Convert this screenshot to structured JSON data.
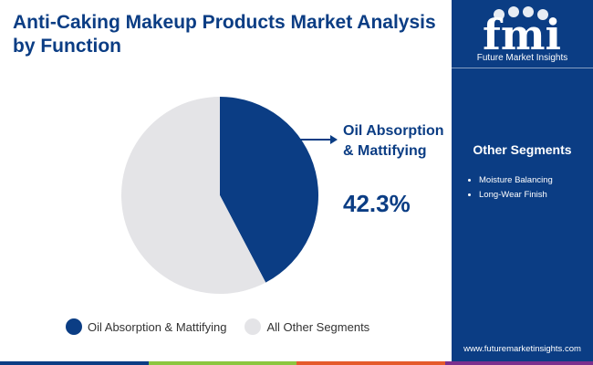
{
  "title": "Anti-Caking Makeup Products Market Analysis by Function",
  "brand": {
    "logo_text": "fmi",
    "name": "Future Market Insights",
    "website": "www.futuremarketinsights.com"
  },
  "sidebar": {
    "heading": "Other Segments",
    "items": [
      "Moisture Balancing",
      "Long-Wear Finish"
    ]
  },
  "callout": {
    "label": "Oil Absorption & Mattifying",
    "value": "42.3%"
  },
  "colors": {
    "primary": "#0b3d84",
    "other": "#e4e4e7",
    "bar": [
      "#0b3d84",
      "#8cc63f",
      "#e55a2b",
      "#7b2f8e"
    ]
  },
  "chart_data": {
    "type": "pie",
    "title": "Anti-Caking Makeup Products Market Analysis by Function",
    "categories": [
      "Oil Absorption & Mattifying",
      "All Other Segments"
    ],
    "values": [
      42.3,
      57.7
    ],
    "colors": [
      "#0b3d84",
      "#e4e4e7"
    ],
    "legend": "bottom"
  }
}
